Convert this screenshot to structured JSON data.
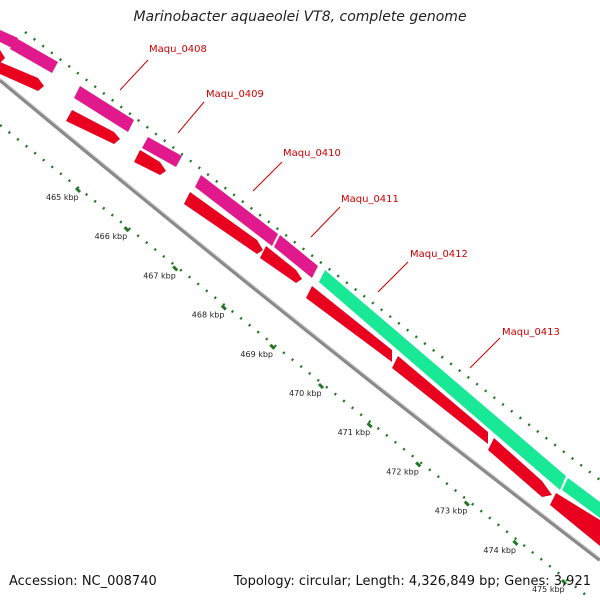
{
  "title": "Marinobacter aquaeolei VT8, complete genome",
  "footer": {
    "accession": "Accession: NC_008740",
    "summary": "Topology: circular; Length: 4,326,849 bp; Genes: 3,921"
  },
  "colors": {
    "cds": "#e8001e",
    "gene_magenta": "#e0198c",
    "gene_green": "#19e896",
    "backbone": "#8c8c8c",
    "tick": "#227722",
    "label": "#cc0000"
  },
  "gene_labels": [
    "Maqu_0408",
    "Maqu_0409",
    "Maqu_0410",
    "Maqu_0411",
    "Maqu_0412",
    "Maqu_0413"
  ],
  "kbp_ticks": [
    "465 kbp",
    "466 kbp",
    "467 kbp",
    "468 kbp",
    "469 kbp",
    "470 kbp",
    "471 kbp",
    "472 kbp",
    "473 kbp",
    "474 kbp",
    "475 kbp"
  ]
}
